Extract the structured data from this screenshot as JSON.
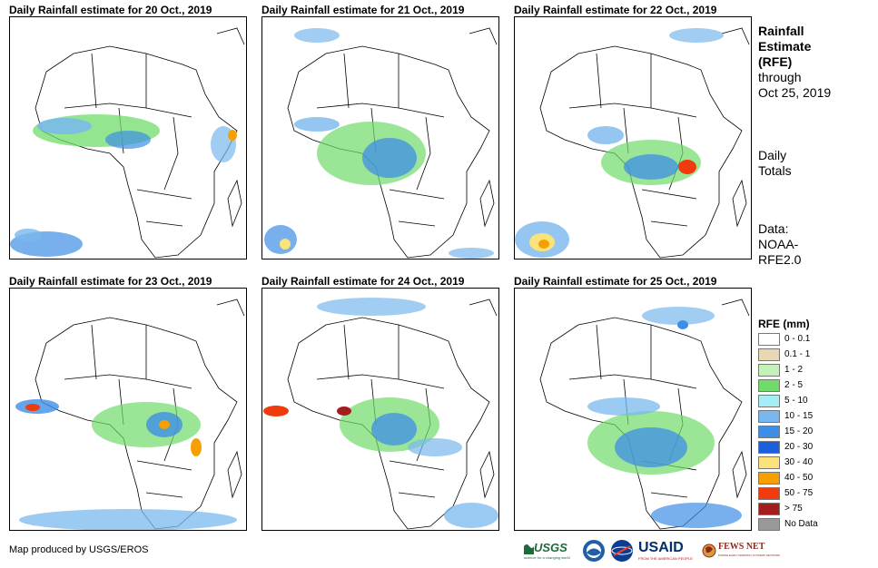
{
  "panels": [
    {
      "title": "Daily Rainfall estimate for 20 Oct., 2019"
    },
    {
      "title": "Daily Rainfall estimate for 21 Oct., 2019"
    },
    {
      "title": "Daily Rainfall estimate for 22 Oct., 2019"
    },
    {
      "title": "Daily Rainfall estimate for 23 Oct., 2019"
    },
    {
      "title": "Daily Rainfall estimate for 24 Oct., 2019"
    },
    {
      "title": "Daily Rainfall estimate for 25 Oct., 2019"
    }
  ],
  "side": {
    "title_line1": "Rainfall",
    "title_line2": "Estimate",
    "title_line3": "(RFE)",
    "through": "through",
    "date": "Oct 25, 2019",
    "totals_line1": "Daily",
    "totals_line2": "Totals",
    "data_line1": "Data:",
    "data_line2": "NOAA-",
    "data_line3": "RFE2.0"
  },
  "legend": {
    "title": "RFE (mm)",
    "items": [
      {
        "label": "0 - 0.1",
        "color": "#ffffff"
      },
      {
        "label": "0.1 - 1",
        "color": "#e8d9b4"
      },
      {
        "label": "1 - 2",
        "color": "#c3f2b8"
      },
      {
        "label": "2 - 5",
        "color": "#6fdc6a"
      },
      {
        "label": "5 - 10",
        "color": "#a6eef5"
      },
      {
        "label": "10 - 15",
        "color": "#79b8ee"
      },
      {
        "label": "15 - 20",
        "color": "#3f8ee6"
      },
      {
        "label": "20 - 30",
        "color": "#1a5fdc"
      },
      {
        "label": "30 - 40",
        "color": "#fbe37b"
      },
      {
        "label": "40 - 50",
        "color": "#f5a000"
      },
      {
        "label": "50 - 75",
        "color": "#ef3b0e"
      },
      {
        "label": "> 75",
        "color": "#a51c1c"
      },
      {
        "label": "No Data",
        "color": "#999999"
      }
    ]
  },
  "footer": {
    "credit": "Map produced by USGS/EROS"
  },
  "logos": {
    "usgs": "USGS",
    "usgs_tag": "science for a changing world",
    "usaid": "USAID",
    "usaid_tag": "FROM THE AMERICAN PEOPLE",
    "fews": "FEWS NET",
    "fews_tag": "FAMINE EARLY WARNING SYSTEMS NETWORK"
  }
}
